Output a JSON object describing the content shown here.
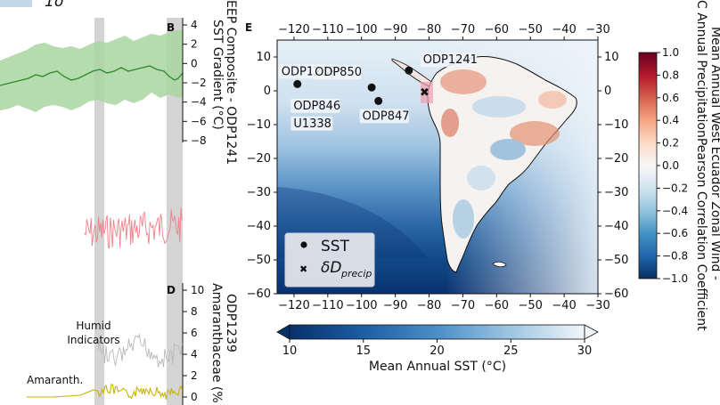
{
  "top_fragment": {
    "legend_label": "1σ"
  },
  "panel_b": {
    "letter": "B",
    "ylabel_line1": "EEP Composite - ODP1241",
    "ylabel_line2": "SST Gradient (°C)",
    "ticks": [
      "4",
      "2",
      "0",
      "−2",
      "−4",
      "−6",
      "−8"
    ],
    "tick_values": [
      4,
      2,
      0,
      -2,
      -4,
      -6,
      -8
    ],
    "ylim": [
      -8,
      4
    ],
    "band_color": "#a8d5a0",
    "line_color": "#2e8b2e"
  },
  "panel_c": {
    "line_color": "#f0808a"
  },
  "panel_d": {
    "letter": "D",
    "ylabel_line1": "ODP1239",
    "ylabel_line2": "Amaranthaceae (%",
    "ticks": [
      "10",
      "8",
      "6",
      "4",
      "2",
      "0"
    ],
    "tick_values": [
      10,
      8,
      6,
      4,
      2,
      0
    ],
    "ylim": [
      0,
      10
    ],
    "humid_label_line1": "Humid",
    "humid_label_line2": "Indicators",
    "amaranth_label": "Amaranth.",
    "humid_color": "#b8b8b8",
    "amaranth_color": "#c8b400"
  },
  "panel_e": {
    "letter": "E",
    "x_ticks": [
      "−120",
      "−110",
      "−100",
      "−90",
      "−80",
      "−70",
      "−60",
      "−50",
      "−40",
      "−30"
    ],
    "x_tick_values": [
      -120,
      -110,
      -100,
      -90,
      -80,
      -70,
      -60,
      -50,
      -40,
      -30
    ],
    "y_ticks": [
      "10",
      "0",
      "−10",
      "−20",
      "−30",
      "−40",
      "−50",
      "−60"
    ],
    "y_tick_values": [
      10,
      0,
      -10,
      -20,
      -30,
      -40,
      -50,
      -60
    ],
    "xlim": [
      -125,
      -30
    ],
    "ylim": [
      -60,
      15
    ],
    "sites": [
      {
        "name": "ODP1239",
        "lon": -119,
        "lat": 2
      },
      {
        "name": "ODP846",
        "lon": -117,
        "lat": -0.5
      },
      {
        "name": "U1338",
        "lon": -117,
        "lat": -6
      },
      {
        "name": "ODP850",
        "lon": -97,
        "lat": 1
      },
      {
        "name": "ODP847",
        "lon": -95,
        "lat": -3
      },
      {
        "name": "ODP1241",
        "lon": -86,
        "lat": 6
      }
    ],
    "legend": {
      "sst": "SST",
      "dd_main": "δD",
      "dd_sub": "precip"
    }
  },
  "sst_colorbar": {
    "label": "Mean Annual SST (°C)",
    "ticks": [
      "10",
      "15",
      "20",
      "25",
      "30"
    ],
    "tick_values": [
      10,
      15,
      20,
      25,
      30
    ],
    "range": [
      10,
      30
    ]
  },
  "corr_colorbar": {
    "ticks": [
      "1.0",
      "0.8",
      "0.6",
      "0.4",
      "0.2",
      "0.0",
      "−0.2",
      "−0.4",
      "−0.6",
      "−0.8",
      "−1.0"
    ],
    "tick_values": [
      1.0,
      0.8,
      0.6,
      0.4,
      0.2,
      0.0,
      -0.2,
      -0.4,
      -0.6,
      -0.8,
      -1.0
    ],
    "label_line1": "Mean Annual West Ecuador Zonal Wind -",
    "label_line2": "C Annual PrecipitationPearson Correlation Coefficient"
  }
}
